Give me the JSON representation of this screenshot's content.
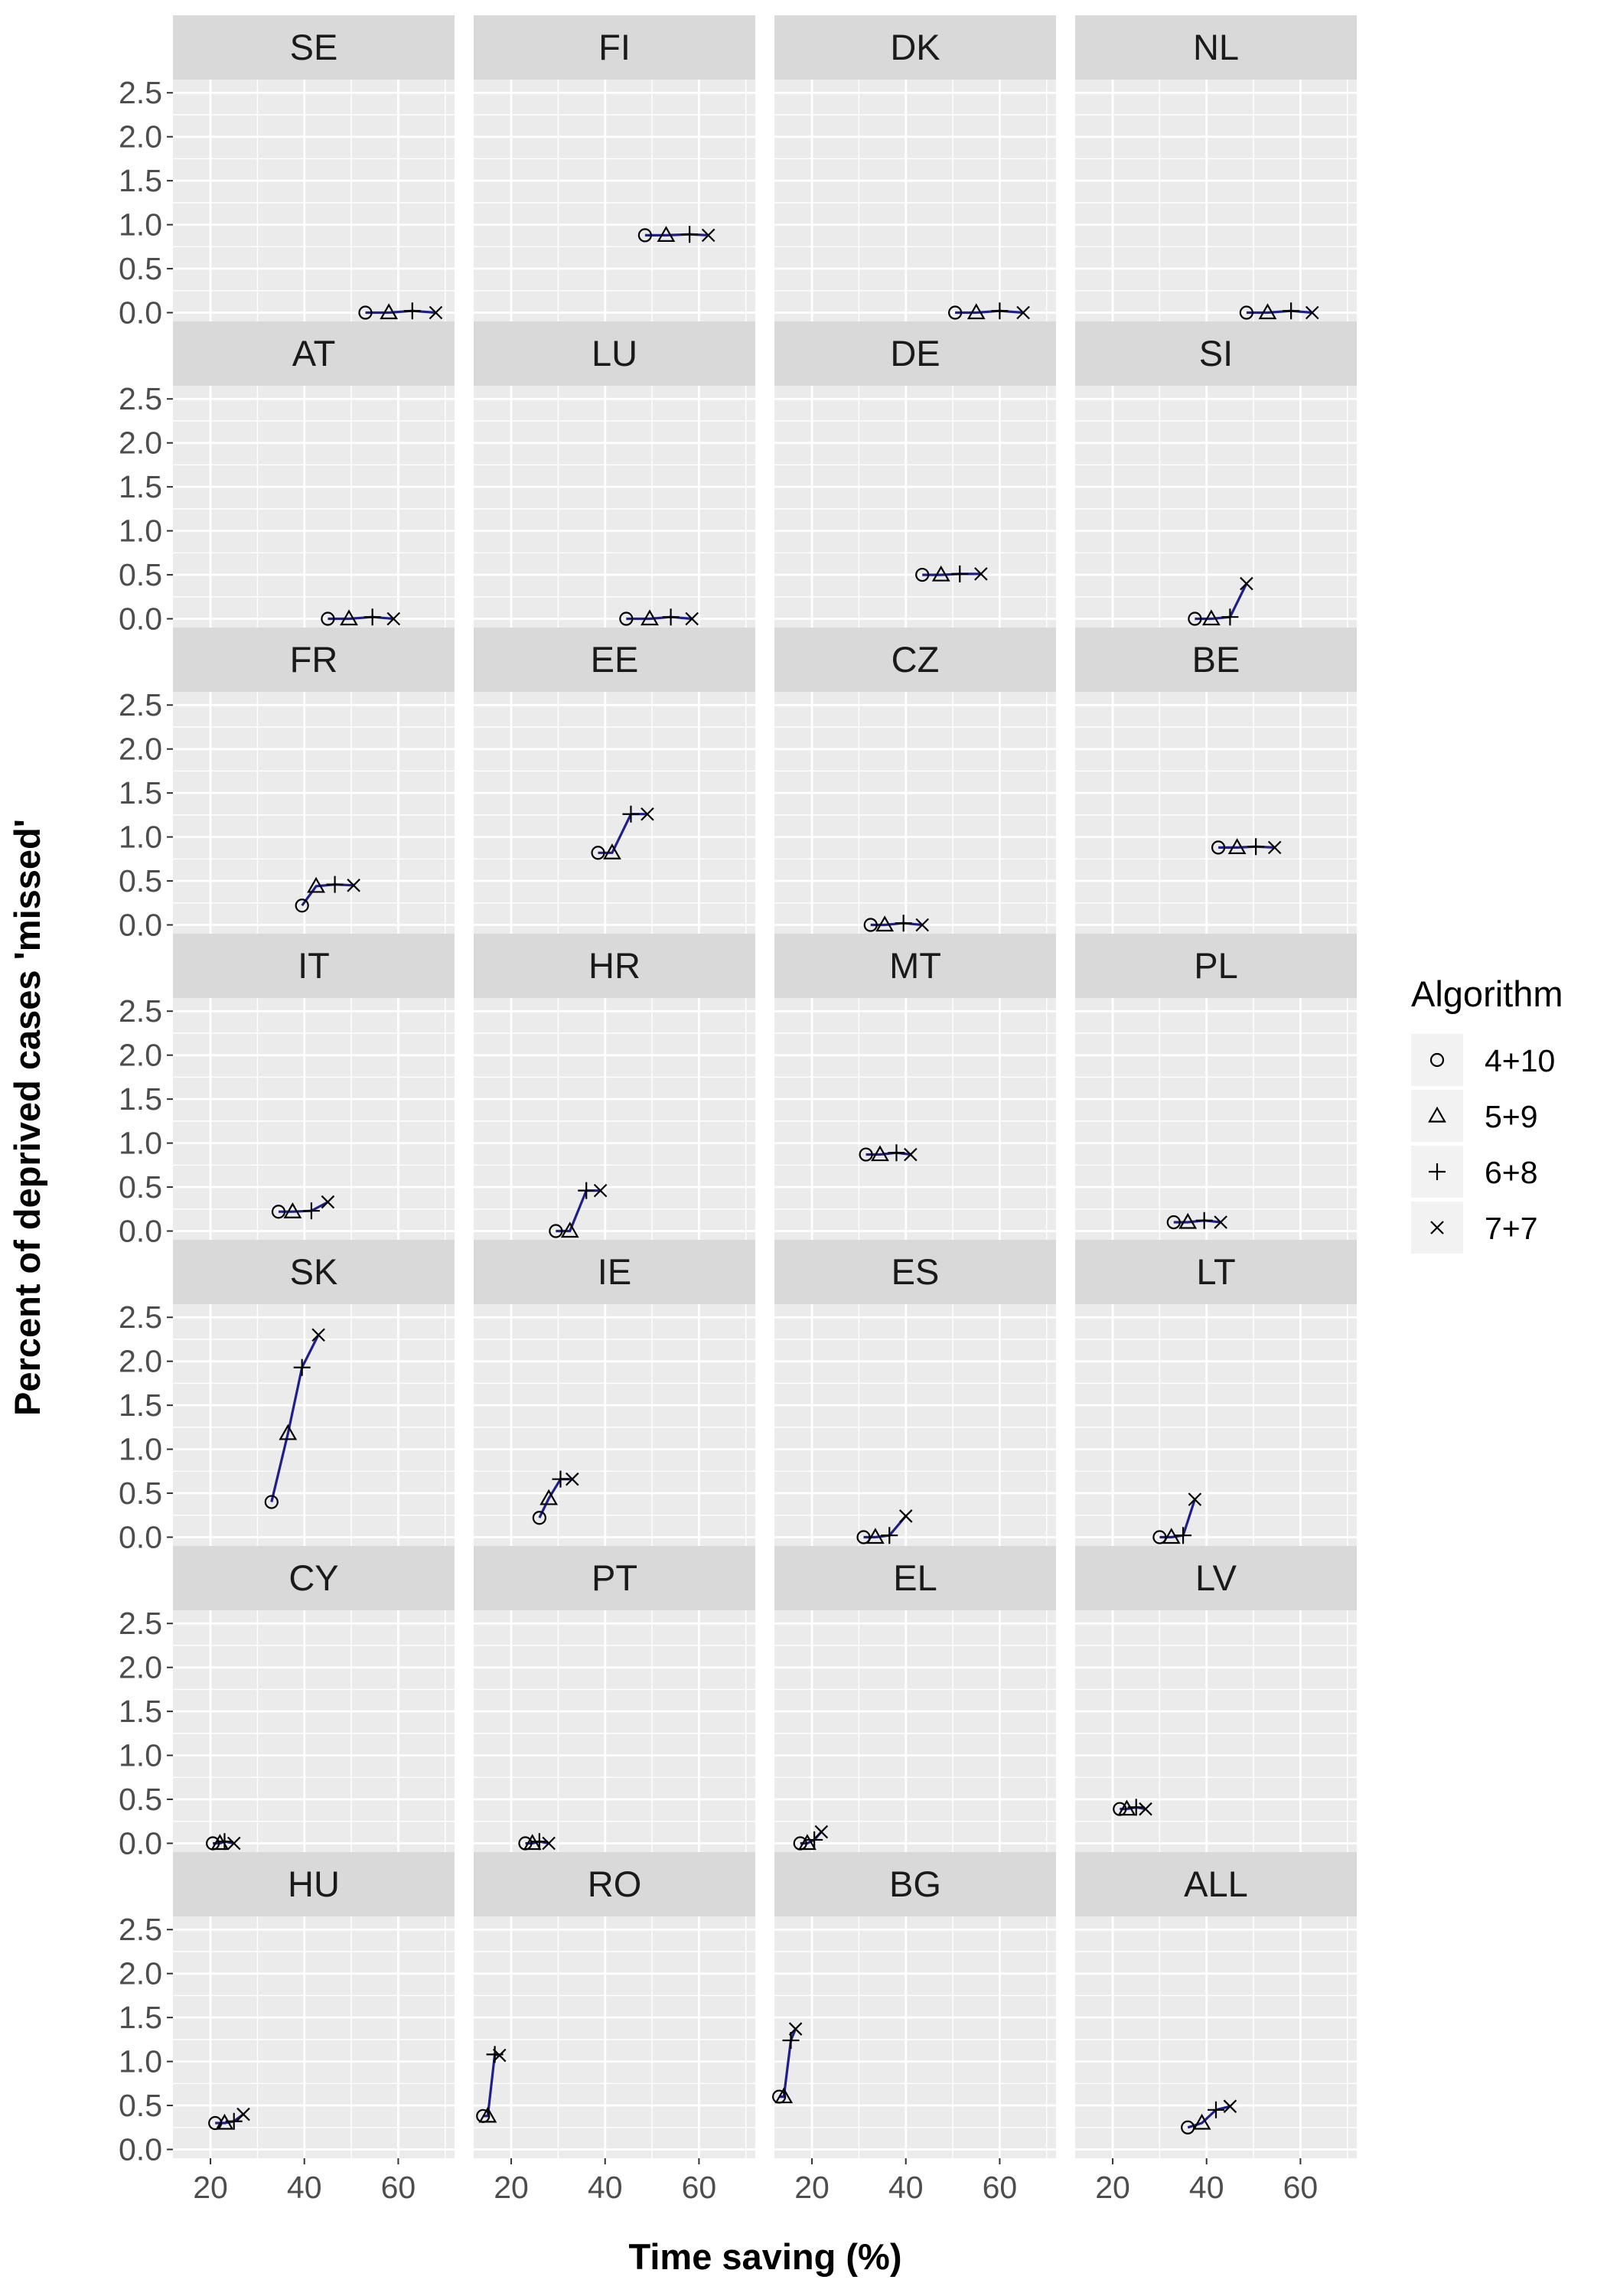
{
  "chart_data": {
    "type": "scatter",
    "facet": "country",
    "xlabel": "Time saving (%)",
    "ylabel": "Percent of deprived cases 'missed'",
    "xlim": [
      12,
      72
    ],
    "ylim": [
      -0.1,
      2.65
    ],
    "x_ticks": [
      20,
      40,
      60
    ],
    "y_ticks": [
      0.0,
      0.5,
      1.0,
      1.5,
      2.0,
      2.5
    ],
    "y_tick_labels": [
      "0.0",
      "0.5",
      "1.0",
      "1.5",
      "2.0",
      "2.5"
    ],
    "grid": true,
    "line_color": "#1f1f8a",
    "legend": {
      "title": "Algorithm",
      "position": "right",
      "items": [
        {
          "label": "4+10",
          "shape": "circle"
        },
        {
          "label": "5+9",
          "shape": "triangle"
        },
        {
          "label": "6+8",
          "shape": "plus"
        },
        {
          "label": "7+7",
          "shape": "cross"
        }
      ]
    },
    "panels": [
      {
        "label": "SE",
        "points": [
          [
            53,
            0.0
          ],
          [
            58,
            0.0
          ],
          [
            63,
            0.02
          ],
          [
            68,
            0.0
          ]
        ]
      },
      {
        "label": "FI",
        "points": [
          [
            48.5,
            0.88
          ],
          [
            53,
            0.88
          ],
          [
            58,
            0.89
          ],
          [
            62,
            0.88
          ]
        ]
      },
      {
        "label": "DK",
        "points": [
          [
            50.5,
            0.0
          ],
          [
            55,
            0.0
          ],
          [
            60,
            0.02
          ],
          [
            65,
            0.0
          ]
        ]
      },
      {
        "label": "NL",
        "points": [
          [
            48.5,
            0.0
          ],
          [
            53,
            0.0
          ],
          [
            58,
            0.02
          ],
          [
            62.5,
            0.0
          ]
        ]
      },
      {
        "label": "AT",
        "points": [
          [
            45,
            0.0
          ],
          [
            49.5,
            0.0
          ],
          [
            54.5,
            0.02
          ],
          [
            59,
            0.0
          ]
        ]
      },
      {
        "label": "LU",
        "points": [
          [
            44.5,
            0.0
          ],
          [
            49.5,
            0.0
          ],
          [
            54,
            0.02
          ],
          [
            58.5,
            0.0
          ]
        ]
      },
      {
        "label": "DE",
        "points": [
          [
            43.5,
            0.5
          ],
          [
            47.5,
            0.5
          ],
          [
            51.5,
            0.51
          ],
          [
            56,
            0.51
          ]
        ]
      },
      {
        "label": "SI",
        "points": [
          [
            37.5,
            0.0
          ],
          [
            41,
            0.0
          ],
          [
            45,
            0.02
          ],
          [
            48.5,
            0.4
          ]
        ]
      },
      {
        "label": "FR",
        "points": [
          [
            39.5,
            0.22
          ],
          [
            42.5,
            0.44
          ],
          [
            46.5,
            0.46
          ],
          [
            50.5,
            0.45
          ]
        ]
      },
      {
        "label": "EE",
        "points": [
          [
            38.5,
            0.82
          ],
          [
            41.5,
            0.82
          ],
          [
            45.5,
            1.26
          ],
          [
            49,
            1.26
          ]
        ]
      },
      {
        "label": "CZ",
        "points": [
          [
            32.5,
            0.0
          ],
          [
            35.5,
            0.0
          ],
          [
            39.5,
            0.02
          ],
          [
            43.5,
            0.0
          ]
        ]
      },
      {
        "label": "BE",
        "points": [
          [
            42.5,
            0.88
          ],
          [
            46.5,
            0.88
          ],
          [
            50.5,
            0.89
          ],
          [
            54.5,
            0.88
          ]
        ]
      },
      {
        "label": "IT",
        "points": [
          [
            34.5,
            0.22
          ],
          [
            37.5,
            0.22
          ],
          [
            41.5,
            0.23
          ],
          [
            45,
            0.33
          ]
        ]
      },
      {
        "label": "HR",
        "points": [
          [
            29.5,
            0.0
          ],
          [
            32.5,
            0.0
          ],
          [
            36,
            0.46
          ],
          [
            39,
            0.46
          ]
        ]
      },
      {
        "label": "MT",
        "points": [
          [
            31.5,
            0.87
          ],
          [
            34.5,
            0.87
          ],
          [
            38,
            0.89
          ],
          [
            41,
            0.87
          ]
        ]
      },
      {
        "label": "PL",
        "points": [
          [
            33,
            0.1
          ],
          [
            36,
            0.1
          ],
          [
            39.5,
            0.12
          ],
          [
            43,
            0.1
          ]
        ]
      },
      {
        "label": "SK",
        "points": [
          [
            33,
            0.4
          ],
          [
            36.5,
            1.18
          ],
          [
            39.5,
            1.93
          ],
          [
            43,
            2.3
          ]
        ]
      },
      {
        "label": "IE",
        "points": [
          [
            26,
            0.22
          ],
          [
            28,
            0.44
          ],
          [
            30.5,
            0.66
          ],
          [
            33,
            0.66
          ]
        ]
      },
      {
        "label": "ES",
        "points": [
          [
            31,
            0.0
          ],
          [
            33.5,
            0.0
          ],
          [
            36.5,
            0.02
          ],
          [
            40,
            0.24
          ]
        ]
      },
      {
        "label": "LT",
        "points": [
          [
            30,
            0.0
          ],
          [
            32.5,
            0.0
          ],
          [
            35,
            0.02
          ],
          [
            37.5,
            0.43
          ]
        ]
      },
      {
        "label": "CY",
        "points": [
          [
            20.5,
            0.0
          ],
          [
            22,
            0.0
          ],
          [
            23,
            0.02
          ],
          [
            25,
            0.0
          ]
        ]
      },
      {
        "label": "PT",
        "points": [
          [
            23,
            0.0
          ],
          [
            24.5,
            0.0
          ],
          [
            26,
            0.02
          ],
          [
            28,
            0.0
          ]
        ]
      },
      {
        "label": "EL",
        "points": [
          [
            17.5,
            0.0
          ],
          [
            19,
            0.0
          ],
          [
            20.5,
            0.04
          ],
          [
            22,
            0.13
          ]
        ]
      },
      {
        "label": "LV",
        "points": [
          [
            21.5,
            0.39
          ],
          [
            23,
            0.39
          ],
          [
            25,
            0.41
          ],
          [
            27,
            0.39
          ]
        ]
      },
      {
        "label": "HU",
        "points": [
          [
            21,
            0.3
          ],
          [
            23,
            0.3
          ],
          [
            25,
            0.32
          ],
          [
            27,
            0.4
          ]
        ]
      },
      {
        "label": "RO",
        "points": [
          [
            14,
            0.38
          ],
          [
            15,
            0.38
          ],
          [
            16.5,
            1.08
          ],
          [
            17.5,
            1.07
          ]
        ]
      },
      {
        "label": "BG",
        "points": [
          [
            13,
            0.6
          ],
          [
            14,
            0.6
          ],
          [
            15.5,
            1.24
          ],
          [
            16.5,
            1.37
          ]
        ]
      },
      {
        "label": "ALL",
        "points": [
          [
            36,
            0.25
          ],
          [
            39,
            0.3
          ],
          [
            42,
            0.45
          ],
          [
            45,
            0.49
          ]
        ]
      }
    ]
  }
}
